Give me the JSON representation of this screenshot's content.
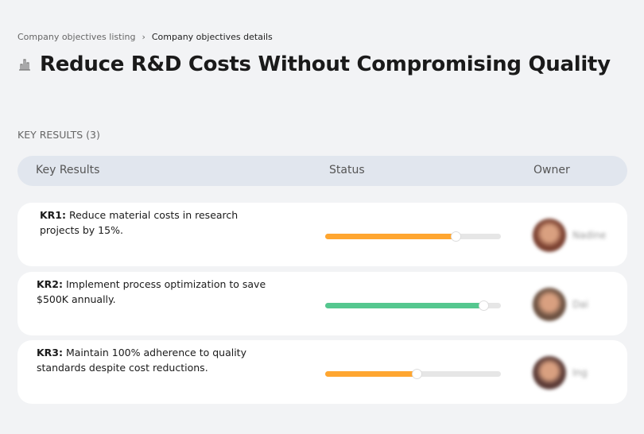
{
  "breadcrumb": {
    "items": [
      "Company objectives listing",
      "Company objectives details"
    ]
  },
  "page": {
    "title": "Reduce R&D Costs Without Compromising Quality",
    "icon": "building-chart-icon"
  },
  "section": {
    "label": "KEY RESULTS (3)"
  },
  "table": {
    "headers": [
      "Key Results",
      "Status",
      "Owner"
    ],
    "rows": [
      {
        "id": "KR1:",
        "text": " Reduce material costs in research projects by 15%.",
        "progress": 74,
        "color": "#ffa630",
        "owner": "Nadine",
        "avatar_color": "#7a4030"
      },
      {
        "id": "KR2:",
        "text": " Implement process optimization to save $500K annually.",
        "progress": 90,
        "color": "#55c78f",
        "owner": "Dai",
        "avatar_color": "#6b5040"
      },
      {
        "id": "KR3:",
        "text": " Maintain 100% adherence to quality standards despite cost reductions.",
        "progress": 52,
        "color": "#ffa630",
        "owner": "Ing",
        "avatar_color": "#5a3a35"
      }
    ]
  }
}
